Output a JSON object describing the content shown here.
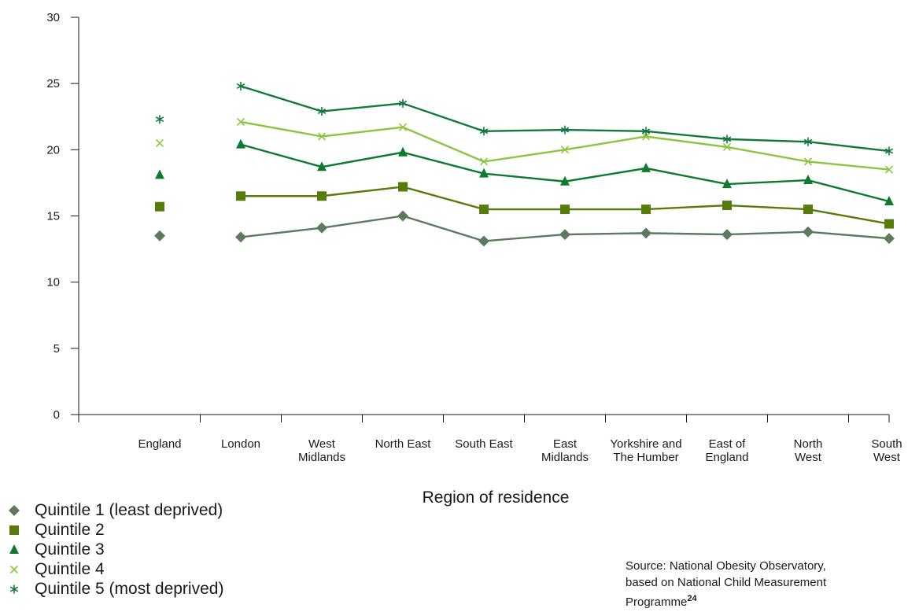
{
  "chart_data": {
    "type": "line",
    "xlabel": "Region of residence",
    "ylabel": "",
    "ylim": [
      0,
      30
    ],
    "yticks": [
      0,
      5,
      10,
      15,
      20,
      25,
      30
    ],
    "grid": false,
    "legend_placement": "bottom-left",
    "categories": [
      [
        "England"
      ],
      [
        "London"
      ],
      [
        "West",
        "Midlands"
      ],
      [
        "North East"
      ],
      [
        "South East"
      ],
      [
        "East",
        "Midlands"
      ],
      [
        "Yorkshire and",
        "The Humber"
      ],
      [
        "East of",
        "England"
      ],
      [
        "North",
        "West"
      ],
      [
        "South",
        "West"
      ]
    ],
    "series": [
      {
        "name": "Quintile 1 (least deprived)",
        "marker": "diamond",
        "color": "#5e7a5e",
        "values": [
          13.5,
          13.4,
          14.1,
          15.0,
          13.1,
          13.6,
          13.7,
          13.6,
          13.8,
          13.3
        ]
      },
      {
        "name": "Quintile 2",
        "marker": "square",
        "color": "#567c0c",
        "values": [
          15.7,
          16.5,
          16.5,
          17.2,
          15.5,
          15.5,
          15.5,
          15.8,
          15.5,
          14.4
        ]
      },
      {
        "name": "Quintile 3",
        "marker": "triangle",
        "color": "#0d7a2e",
        "values": [
          18.1,
          20.4,
          18.7,
          19.8,
          18.2,
          17.6,
          18.6,
          17.4,
          17.7,
          16.1
        ]
      },
      {
        "name": "Quintile 4",
        "marker": "x",
        "color": "#8cc63f",
        "values": [
          20.5,
          22.1,
          21.0,
          21.7,
          19.1,
          20.0,
          21.0,
          20.2,
          19.1,
          18.5
        ]
      },
      {
        "name": "Quintile 5 (most deprived)",
        "marker": "asterisk",
        "color": "#11793b",
        "values": [
          22.3,
          24.8,
          22.9,
          23.5,
          21.4,
          21.5,
          21.4,
          20.8,
          20.6,
          19.9
        ]
      }
    ]
  },
  "source": {
    "line1": "Source: National Obesity Observatory,",
    "line2": "based on National Child Measurement",
    "line3": "Programme",
    "ref": "24"
  }
}
